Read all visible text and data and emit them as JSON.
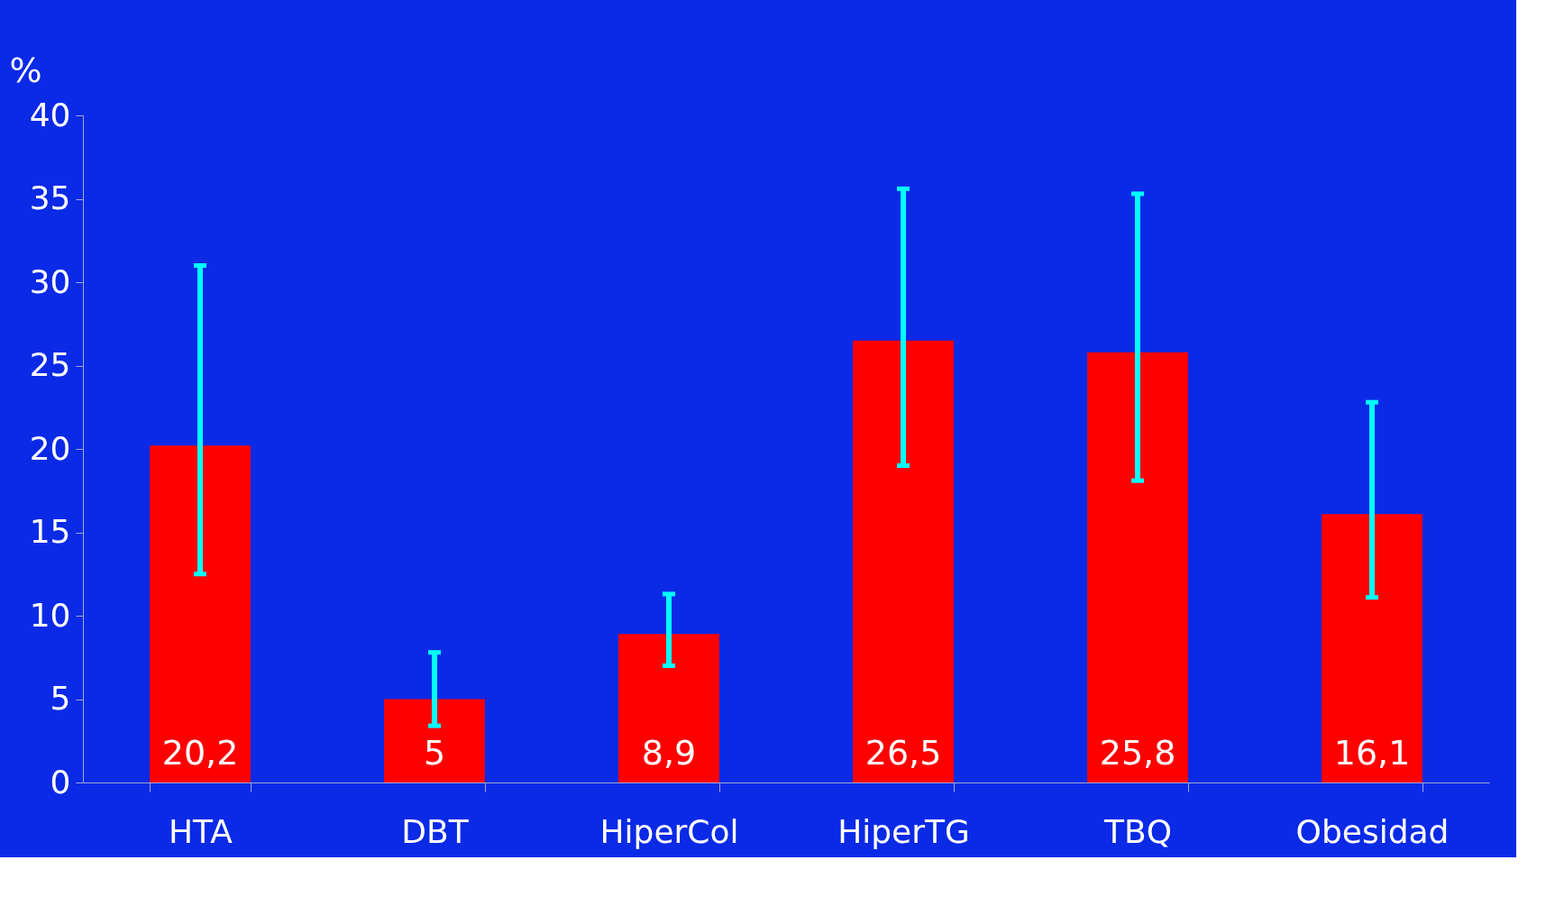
{
  "chart_data": {
    "type": "bar",
    "ylabel": "%",
    "categories": [
      "HTA",
      "DBT",
      "HiperCol",
      "HiperTG",
      "TBQ",
      "Obesidad"
    ],
    "values": [
      20.2,
      5,
      8.9,
      26.5,
      25.8,
      16.1
    ],
    "color": "#ff0000",
    "errors": [
      [
        12.5,
        31
      ],
      [
        3.4,
        7.8
      ],
      [
        7,
        11.3
      ],
      [
        19,
        35.6
      ],
      [
        18.1,
        35.3
      ],
      [
        11.1,
        22.8
      ]
    ],
    "value_labels": [
      "20,2",
      "5",
      "8,9",
      "26,5",
      "25,8",
      "16,1"
    ],
    "ylim": [
      0,
      40
    ],
    "yticks": [
      0,
      5,
      10,
      15,
      20,
      25,
      30,
      35,
      40
    ],
    "grid": false
  }
}
